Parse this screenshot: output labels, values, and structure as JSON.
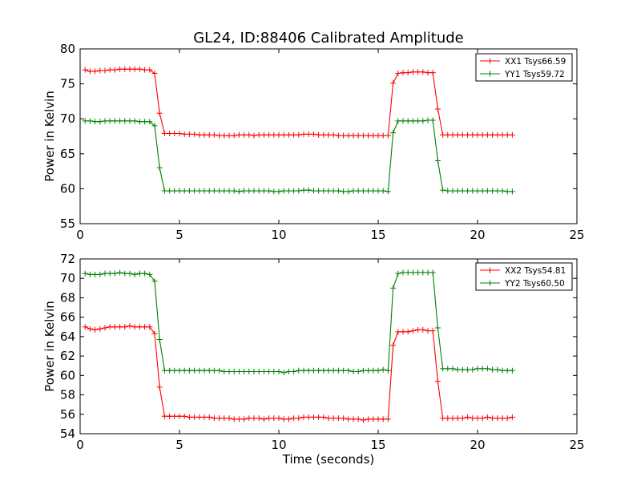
{
  "title": "GL24, ID:88406 Calibrated Amplitude",
  "xlabel": "Time (seconds)",
  "chart_data": [
    {
      "type": "line",
      "ylabel": "Power in Kelvin",
      "xlim": [
        0,
        25
      ],
      "ylim": [
        55,
        80
      ],
      "xticks": [
        0,
        5,
        10,
        15,
        20,
        25
      ],
      "yticks": [
        55,
        60,
        65,
        70,
        75,
        80
      ],
      "grid": false,
      "legend_position": "top-right",
      "x": [
        0.25,
        0.5,
        0.75,
        1.0,
        1.25,
        1.5,
        1.75,
        2.0,
        2.25,
        2.5,
        2.75,
        3.0,
        3.25,
        3.5,
        3.75,
        4.0,
        4.25,
        4.5,
        4.75,
        5.0,
        5.25,
        5.5,
        5.75,
        6.0,
        6.25,
        6.5,
        6.75,
        7.0,
        7.25,
        7.5,
        7.75,
        8.0,
        8.25,
        8.5,
        8.75,
        9.0,
        9.25,
        9.5,
        9.75,
        10.0,
        10.25,
        10.5,
        10.75,
        11.0,
        11.25,
        11.5,
        11.75,
        12.0,
        12.25,
        12.5,
        12.75,
        13.0,
        13.25,
        13.5,
        13.75,
        14.0,
        14.25,
        14.5,
        14.75,
        15.0,
        15.25,
        15.5,
        15.75,
        16.0,
        16.25,
        16.5,
        16.75,
        17.0,
        17.25,
        17.5,
        17.75,
        18.0,
        18.25,
        18.5,
        18.75,
        19.0,
        19.25,
        19.5,
        19.75,
        20.0,
        20.25,
        20.5,
        20.75,
        21.0,
        21.25,
        21.5,
        21.75
      ],
      "series": [
        {
          "name": "XX1 Tsys66.59",
          "color": "#ff0000",
          "values": [
            77.0,
            76.8,
            76.8,
            76.9,
            76.9,
            77.0,
            77.0,
            77.1,
            77.1,
            77.1,
            77.1,
            77.1,
            77.0,
            77.0,
            76.5,
            70.8,
            67.9,
            67.9,
            67.9,
            67.9,
            67.8,
            67.8,
            67.8,
            67.7,
            67.7,
            67.7,
            67.7,
            67.6,
            67.6,
            67.6,
            67.6,
            67.7,
            67.7,
            67.7,
            67.6,
            67.7,
            67.7,
            67.7,
            67.7,
            67.7,
            67.7,
            67.7,
            67.7,
            67.7,
            67.8,
            67.8,
            67.8,
            67.7,
            67.7,
            67.7,
            67.7,
            67.6,
            67.6,
            67.6,
            67.6,
            67.6,
            67.6,
            67.6,
            67.6,
            67.6,
            67.6,
            67.6,
            75.1,
            76.5,
            76.6,
            76.6,
            76.7,
            76.7,
            76.7,
            76.6,
            76.6,
            71.4,
            67.7,
            67.7,
            67.7,
            67.7,
            67.7,
            67.7,
            67.7,
            67.7,
            67.7,
            67.7,
            67.7,
            67.7,
            67.7,
            67.7,
            67.7
          ]
        },
        {
          "name": "YY1 Tsys59.72",
          "color": "#008000",
          "values": [
            69.7,
            69.7,
            69.6,
            69.6,
            69.7,
            69.7,
            69.7,
            69.7,
            69.7,
            69.7,
            69.7,
            69.6,
            69.6,
            69.6,
            69.0,
            63.0,
            59.7,
            59.7,
            59.7,
            59.7,
            59.7,
            59.7,
            59.7,
            59.7,
            59.7,
            59.7,
            59.7,
            59.7,
            59.7,
            59.7,
            59.7,
            59.6,
            59.7,
            59.7,
            59.7,
            59.7,
            59.7,
            59.7,
            59.6,
            59.6,
            59.7,
            59.7,
            59.7,
            59.7,
            59.8,
            59.8,
            59.7,
            59.7,
            59.7,
            59.7,
            59.7,
            59.7,
            59.6,
            59.6,
            59.7,
            59.7,
            59.7,
            59.7,
            59.7,
            59.7,
            59.7,
            59.6,
            68.0,
            69.7,
            69.7,
            69.7,
            69.7,
            69.7,
            69.7,
            69.8,
            69.8,
            64.0,
            59.8,
            59.7,
            59.7,
            59.7,
            59.7,
            59.7,
            59.7,
            59.7,
            59.7,
            59.7,
            59.7,
            59.7,
            59.7,
            59.6,
            59.6
          ]
        }
      ]
    },
    {
      "type": "line",
      "ylabel": "Power in Kelvin",
      "xlabel": "Time (seconds)",
      "xlim": [
        0,
        25
      ],
      "ylim": [
        54,
        72
      ],
      "xticks": [
        0,
        5,
        10,
        15,
        20,
        25
      ],
      "yticks": [
        54,
        56,
        58,
        60,
        62,
        64,
        66,
        68,
        70,
        72
      ],
      "grid": false,
      "legend_position": "top-right",
      "x": [
        0.25,
        0.5,
        0.75,
        1.0,
        1.25,
        1.5,
        1.75,
        2.0,
        2.25,
        2.5,
        2.75,
        3.0,
        3.25,
        3.5,
        3.75,
        4.0,
        4.25,
        4.5,
        4.75,
        5.0,
        5.25,
        5.5,
        5.75,
        6.0,
        6.25,
        6.5,
        6.75,
        7.0,
        7.25,
        7.5,
        7.75,
        8.0,
        8.25,
        8.5,
        8.75,
        9.0,
        9.25,
        9.5,
        9.75,
        10.0,
        10.25,
        10.5,
        10.75,
        11.0,
        11.25,
        11.5,
        11.75,
        12.0,
        12.25,
        12.5,
        12.75,
        13.0,
        13.25,
        13.5,
        13.75,
        14.0,
        14.25,
        14.5,
        14.75,
        15.0,
        15.25,
        15.5,
        15.75,
        16.0,
        16.25,
        16.5,
        16.75,
        17.0,
        17.25,
        17.5,
        17.75,
        18.0,
        18.25,
        18.5,
        18.75,
        19.0,
        19.25,
        19.5,
        19.75,
        20.0,
        20.25,
        20.5,
        20.75,
        21.0,
        21.25,
        21.5,
        21.75
      ],
      "series": [
        {
          "name": "XX2 Tsys54.81",
          "color": "#ff0000",
          "values": [
            65.0,
            64.8,
            64.7,
            64.8,
            64.9,
            65.0,
            65.0,
            65.0,
            65.0,
            65.1,
            65.0,
            65.0,
            65.0,
            65.0,
            64.3,
            58.8,
            55.8,
            55.8,
            55.8,
            55.8,
            55.8,
            55.7,
            55.7,
            55.7,
            55.7,
            55.7,
            55.6,
            55.6,
            55.6,
            55.6,
            55.5,
            55.5,
            55.5,
            55.6,
            55.6,
            55.6,
            55.5,
            55.6,
            55.6,
            55.6,
            55.5,
            55.5,
            55.6,
            55.6,
            55.7,
            55.7,
            55.7,
            55.7,
            55.7,
            55.6,
            55.6,
            55.6,
            55.6,
            55.5,
            55.5,
            55.5,
            55.4,
            55.5,
            55.5,
            55.5,
            55.5,
            55.5,
            63.1,
            64.5,
            64.5,
            64.5,
            64.6,
            64.7,
            64.7,
            64.6,
            64.6,
            59.4,
            55.6,
            55.6,
            55.6,
            55.6,
            55.6,
            55.7,
            55.6,
            55.6,
            55.6,
            55.7,
            55.6,
            55.6,
            55.6,
            55.6,
            55.7
          ]
        },
        {
          "name": "YY2 Tsys60.50",
          "color": "#008000",
          "values": [
            70.5,
            70.4,
            70.4,
            70.4,
            70.5,
            70.5,
            70.5,
            70.6,
            70.5,
            70.5,
            70.4,
            70.5,
            70.5,
            70.4,
            69.7,
            63.7,
            60.5,
            60.5,
            60.5,
            60.5,
            60.5,
            60.5,
            60.5,
            60.5,
            60.5,
            60.5,
            60.5,
            60.5,
            60.4,
            60.4,
            60.4,
            60.4,
            60.4,
            60.4,
            60.4,
            60.4,
            60.4,
            60.4,
            60.4,
            60.4,
            60.3,
            60.4,
            60.4,
            60.5,
            60.5,
            60.5,
            60.5,
            60.5,
            60.5,
            60.5,
            60.5,
            60.5,
            60.5,
            60.5,
            60.4,
            60.4,
            60.5,
            60.5,
            60.5,
            60.5,
            60.6,
            60.5,
            69.0,
            70.5,
            70.6,
            70.6,
            70.6,
            70.6,
            70.6,
            70.6,
            70.6,
            64.9,
            60.7,
            60.7,
            60.7,
            60.6,
            60.6,
            60.6,
            60.6,
            60.7,
            60.7,
            60.7,
            60.6,
            60.6,
            60.5,
            60.5,
            60.5
          ]
        }
      ]
    }
  ]
}
